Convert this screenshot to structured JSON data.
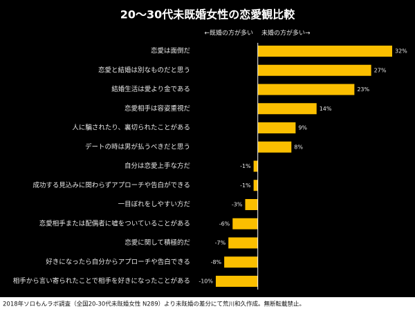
{
  "chart_data": {
    "type": "bar",
    "orientation": "horizontal",
    "title": "20～30代未既婚女性の恋愛観比較",
    "annotations": [
      "←既婚の方が多い",
      "未婚の方が多い→"
    ],
    "categories": [
      "恋愛は面倒だ",
      "恋愛と結婚は別なものだと思う",
      "結婚生活は愛より金である",
      "恋愛相手は容姿重視だ",
      "人に騙されたり、裏切られたことがある",
      "デートの時は男が払うべきだと思う",
      "自分は恋愛上手な方だ",
      "成功する見込みに関わらずアプローチや告白ができる",
      "一目ぼれをしやすい方だ",
      "恋愛相手または配偶者に嘘をついていることがある",
      "恋愛に関して積極的だ",
      "好きになったら自分からアプローチや告白できる",
      "相手から言い寄られたことで相手を好きになったことがある"
    ],
    "values": [
      32,
      27,
      23,
      14,
      9,
      8,
      -1,
      -1,
      -3,
      -6,
      -7,
      -8,
      -10
    ],
    "value_labels": [
      "32%",
      "27%",
      "23%",
      "14%",
      "9%",
      "8%",
      "-1%",
      "-1%",
      "-3%",
      "-6%",
      "-7%",
      "-8%",
      "-10%"
    ],
    "color": "#fbbf00",
    "footnote": "2018年ソロもんラボ調査（全国20-30代未既婚女性 N289）より未既婚の差分にて荒川和久作成。無断転載禁止。"
  }
}
